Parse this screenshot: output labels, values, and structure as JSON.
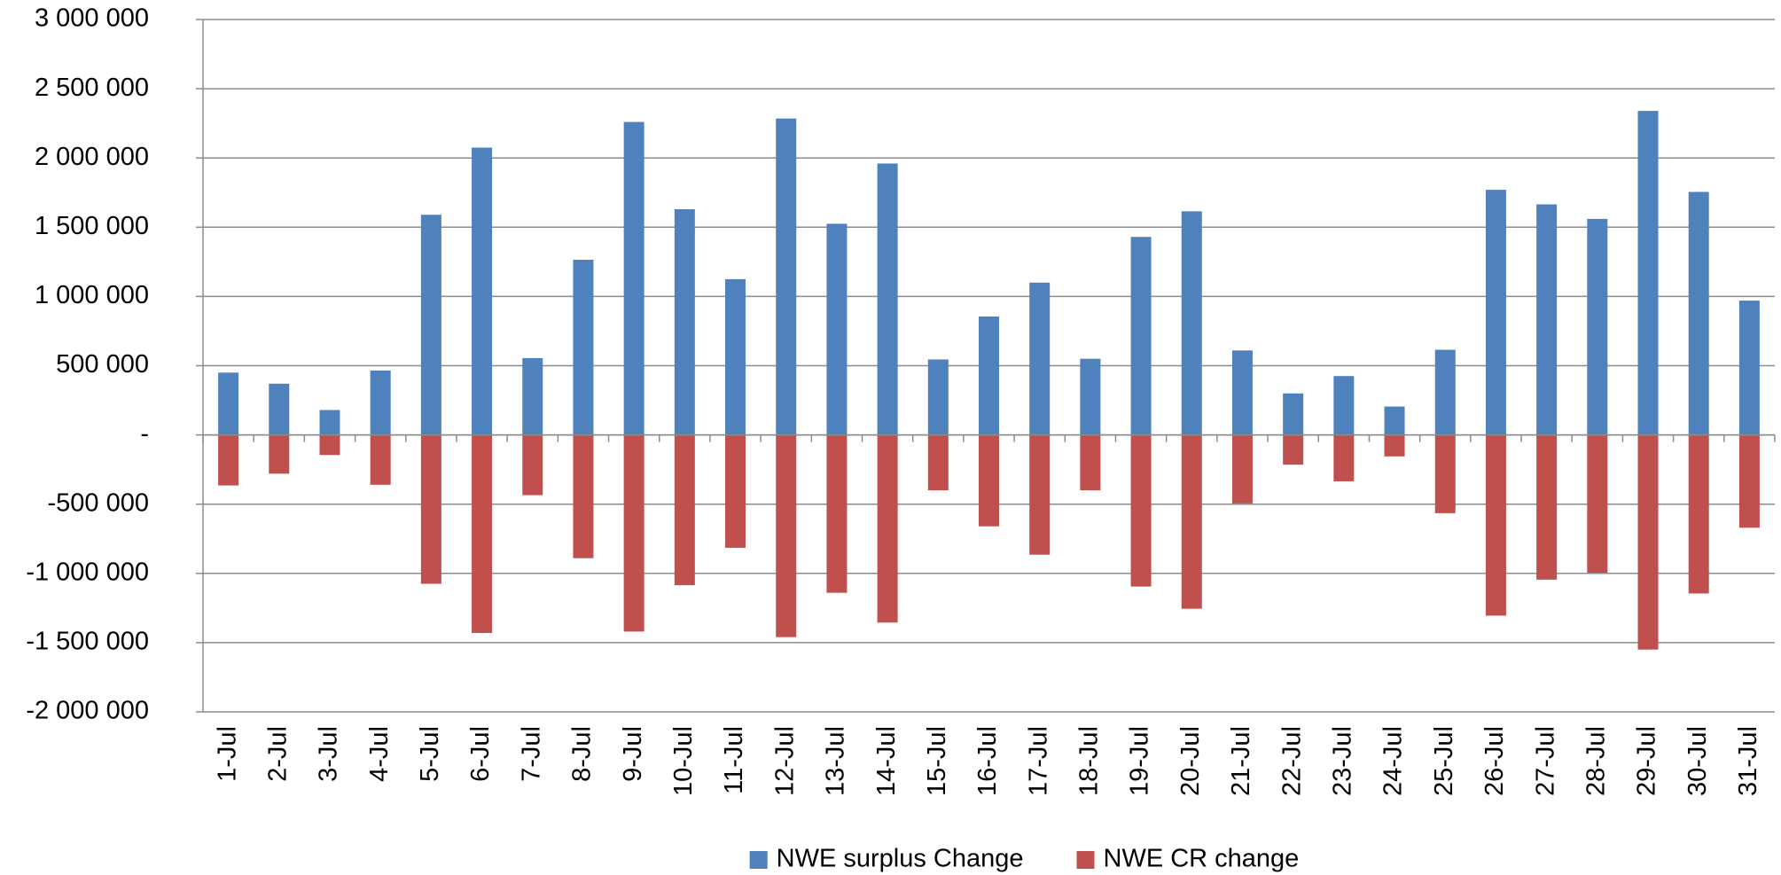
{
  "chart_data": {
    "type": "bar",
    "categories": [
      "1-Jul",
      "2-Jul",
      "3-Jul",
      "4-Jul",
      "5-Jul",
      "6-Jul",
      "7-Jul",
      "8-Jul",
      "9-Jul",
      "10-Jul",
      "11-Jul",
      "12-Jul",
      "13-Jul",
      "14-Jul",
      "15-Jul",
      "16-Jul",
      "17-Jul",
      "18-Jul",
      "19-Jul",
      "20-Jul",
      "21-Jul",
      "22-Jul",
      "23-Jul",
      "24-Jul",
      "25-Jul",
      "26-Jul",
      "27-Jul",
      "28-Jul",
      "29-Jul",
      "30-Jul",
      "31-Jul"
    ],
    "series": [
      {
        "name": "NWE surplus Change",
        "color": "#4f81bd",
        "values": [
          450000,
          370000,
          180000,
          465000,
          1590000,
          2075000,
          555000,
          1265000,
          2260000,
          1630000,
          1125000,
          2285000,
          1525000,
          1960000,
          545000,
          855000,
          1100000,
          550000,
          1430000,
          1615000,
          610000,
          300000,
          425000,
          205000,
          615000,
          1770000,
          1665000,
          1560000,
          2340000,
          1755000,
          970000
        ]
      },
      {
        "name": "NWE CR change",
        "color": "#c0504d",
        "values": [
          -365000,
          -280000,
          -145000,
          -360000,
          -1075000,
          -1430000,
          -435000,
          -890000,
          -1420000,
          -1085000,
          -815000,
          -1460000,
          -1140000,
          -1355000,
          -400000,
          -660000,
          -865000,
          -400000,
          -1095000,
          -1255000,
          -495000,
          -215000,
          -335000,
          -155000,
          -565000,
          -1305000,
          -1045000,
          -995000,
          -1550000,
          -1145000,
          -670000
        ]
      }
    ],
    "ylim": [
      -2000000,
      3000000
    ],
    "yticks": [
      {
        "value": -2000000,
        "label": "-2 000 000"
      },
      {
        "value": -1500000,
        "label": "-1 500 000"
      },
      {
        "value": -1000000,
        "label": "-1 000 000"
      },
      {
        "value": -500000,
        "label": "-500 000"
      },
      {
        "value": 0,
        "label": "-"
      },
      {
        "value": 500000,
        "label": "500 000"
      },
      {
        "value": 1000000,
        "label": "1 000 000"
      },
      {
        "value": 1500000,
        "label": "1 500 000"
      },
      {
        "value": 2000000,
        "label": "2 000 000"
      },
      {
        "value": 2500000,
        "label": "2 500 000"
      },
      {
        "value": 3000000,
        "label": "3 000 000"
      }
    ],
    "grid": true,
    "legend": "bottom"
  }
}
